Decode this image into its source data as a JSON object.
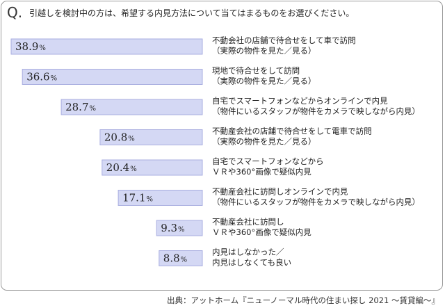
{
  "question": {
    "mark": "Q.",
    "text": "引越しを検討中の方は、希望する内見方法について当てはまるものをお選びください。"
  },
  "source": "出典：アットホーム『ニューノーマル時代の住まい探し 2021 ～賃貸編～』",
  "colors": {
    "bar_fill": "#d4d8f4",
    "bar_stroke": "#a9aee0"
  },
  "chart_data": {
    "type": "bar",
    "orientation": "horizontal",
    "unit": "%",
    "categories": [
      [
        "不動会社の店舗で待合せをして車で訪問",
        "（実際の物件を見た／見る）"
      ],
      [
        "現地で待合せをして訪問",
        "（実際の物件を見た／見る）"
      ],
      [
        "自宅でスマートフォンなどからオンラインで内見",
        "（物件にいるスタッフが物件をカメラで映しながら内見）"
      ],
      [
        "不動産会社の店舗で待合せをして電車で訪問",
        "（実際の物件を見た／見る）"
      ],
      [
        "自宅でスマートフォンなどから",
        "ＶＲや360°画像で疑似内見"
      ],
      [
        "不動産会社に訪問しオンラインで内見",
        "（物件にいるスタッフが物件をカメラで映しながら内見）"
      ],
      [
        "不動産会社に訪問し",
        "ＶＲや360°画像で疑似内見"
      ],
      [
        "内見はしなかった／",
        "内見はしなくても良い"
      ]
    ],
    "values": [
      38.9,
      36.6,
      28.7,
      20.8,
      20.4,
      17.1,
      9.3,
      8.8
    ],
    "value_labels": [
      "38.9",
      "36.6",
      "28.7",
      "20.8",
      "20.4",
      "17.1",
      "9.3",
      "8.8"
    ],
    "xlim": [
      0,
      40
    ],
    "grid": false,
    "legend": "none"
  }
}
